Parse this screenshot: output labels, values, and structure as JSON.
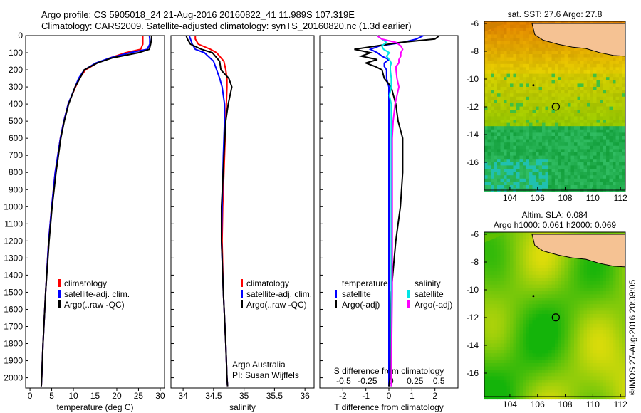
{
  "title": {
    "line1": "Argo profile: CS 5905018_24 21-Aug-2016 20160822_41 11.989S 107.319E",
    "line2": "Climatology: CARS2009. Satellite-adjusted climatology: synTS_20160820.nc (1.3d earlier)"
  },
  "credit": "©IMOS 27-Aug-2016 20:39:05",
  "colors": {
    "clim": "#ff0000",
    "sat": "#0000ff",
    "argo": "#000000",
    "sat_s": "#00e5e5",
    "argo_s": "#ff00ff"
  },
  "chart_data": [
    {
      "type": "line",
      "id": "temperature",
      "xlabel": "temperature (deg C)",
      "ylabel": "depth",
      "xlim": [
        -1,
        31
      ],
      "ylim": [
        2060,
        0
      ],
      "xticks": [
        0,
        5,
        10,
        15,
        20,
        25,
        30
      ],
      "yticks": [
        0,
        100,
        200,
        300,
        400,
        500,
        600,
        700,
        800,
        900,
        1000,
        1100,
        1200,
        1300,
        1400,
        1500,
        1600,
        1700,
        1800,
        1900,
        2000
      ],
      "legend": [
        "climatology",
        "satellite-adj. clim.",
        "Argo(..raw -QC)"
      ],
      "depth": [
        0,
        20,
        50,
        80,
        100,
        130,
        160,
        200,
        250,
        300,
        400,
        500,
        600,
        800,
        1000,
        1200,
        1500,
        1800,
        2000,
        2050
      ],
      "series": [
        {
          "name": "climatology",
          "color": "clim",
          "values": [
            26,
            26,
            26,
            25.5,
            22,
            18.5,
            15.5,
            12.8,
            11.4,
            10.5,
            8.8,
            7.8,
            7.0,
            5.8,
            5.0,
            4.3,
            3.6,
            3.0,
            2.7,
            2.6
          ]
        },
        {
          "name": "satellite-adj. clim.",
          "color": "sat",
          "values": [
            27.5,
            27.6,
            27.6,
            27,
            23,
            18.5,
            15.2,
            12.5,
            11.2,
            10.4,
            8.8,
            7.8,
            7.0,
            5.8,
            5.0,
            4.3,
            3.6,
            3.0,
            2.7,
            2.6
          ]
        },
        {
          "name": "Argo(..raw -QC)",
          "color": "argo",
          "values": [
            28,
            28,
            27.8,
            27.5,
            25,
            19,
            15.5,
            12.5,
            11.5,
            10.4,
            8.9,
            7.9,
            7.1,
            6.0,
            5.1,
            4.4,
            3.6,
            3.0,
            2.7,
            2.6
          ]
        }
      ]
    },
    {
      "type": "line",
      "id": "salinity",
      "xlabel": "salinity",
      "ylabel": "depth",
      "xlim": [
        33.8,
        36.15
      ],
      "ylim": [
        2060,
        0
      ],
      "xticks": [
        34,
        34.5,
        35,
        35.5,
        36
      ],
      "legend": [
        "climatology",
        "satellite-adj. clim.",
        "Argo(..raw -QC)"
      ],
      "annotation": [
        "Argo Australia",
        "PI: Susan Wijffels"
      ],
      "depth": [
        0,
        20,
        50,
        80,
        100,
        150,
        200,
        250,
        300,
        400,
        500,
        700,
        1000,
        1200,
        1500,
        1800,
        2000,
        2050
      ],
      "series": [
        {
          "name": "climatology",
          "color": "clim",
          "values": [
            34.2,
            34.2,
            34.25,
            34.45,
            34.55,
            34.67,
            34.7,
            34.72,
            34.72,
            34.71,
            34.7,
            34.68,
            34.65,
            34.64,
            34.66,
            34.7,
            34.72,
            34.73
          ]
        },
        {
          "name": "satellite-adj. clim.",
          "color": "sat",
          "values": [
            34.1,
            34.12,
            34.15,
            34.2,
            34.35,
            34.5,
            34.55,
            34.6,
            34.64,
            34.68,
            34.68,
            34.66,
            34.64,
            34.63,
            34.66,
            34.7,
            34.72,
            34.73
          ]
        },
        {
          "name": "Argo(..raw -QC)",
          "color": "argo",
          "values": [
            34.05,
            34.07,
            34.12,
            34.3,
            34.48,
            34.6,
            34.62,
            34.75,
            34.8,
            34.74,
            34.7,
            34.67,
            34.63,
            34.63,
            34.66,
            34.7,
            34.72,
            34.73
          ]
        }
      ]
    },
    {
      "type": "line",
      "id": "difference",
      "xlabel": "T difference from climatology",
      "x2label": "S difference from climatology",
      "xlim": [
        -3,
        3
      ],
      "x2lim": [
        -0.75,
        0.7
      ],
      "ylim": [
        2060,
        0
      ],
      "xticks": [
        "-2",
        "-1",
        "0",
        "1",
        "2"
      ],
      "x2ticks": [
        "-0.5",
        "-0.25",
        "0",
        "0.25",
        "0.5"
      ],
      "legend": {
        "temperature": "temperature",
        "salinity": "salinity",
        "items": [
          "satellite",
          "Argo(-adj)",
          "satellite",
          "Argo(-adj)"
        ]
      },
      "depth": [
        0,
        20,
        40,
        60,
        80,
        100,
        120,
        140,
        160,
        180,
        200,
        250,
        300,
        350,
        400,
        500,
        600,
        800,
        1000,
        1200,
        1500,
        2000,
        2050
      ],
      "series": [
        {
          "name": "T satellite",
          "axis": "T",
          "color": "sat",
          "values": [
            1.5,
            1.2,
            0.6,
            -0.4,
            -0.8,
            -0.5,
            -0.3,
            0,
            -0.2,
            -0.2,
            -0.1,
            -0.1,
            0,
            0,
            0,
            0,
            0,
            0,
            0,
            0,
            0,
            0,
            0
          ]
        },
        {
          "name": "T Argo(-adj)",
          "axis": "T",
          "color": "argo",
          "values": [
            2.2,
            2.0,
            0.5,
            -0.5,
            -1.5,
            -0.8,
            -1.2,
            -0.5,
            -1.0,
            -0.6,
            -0.3,
            -0.2,
            0.1,
            0.2,
            0.3,
            0.4,
            0.6,
            0.6,
            0.5,
            0.3,
            0.1,
            0.05,
            0
          ]
        },
        {
          "name": "S satellite",
          "axis": "S",
          "color": "sat_s",
          "values": [
            -0.15,
            -0.1,
            -0.05,
            -0.1,
            -0.08,
            -0.02,
            -0.05,
            -0.02,
            0,
            -0.01,
            -0.01,
            0,
            0,
            -0.02,
            0,
            0,
            0,
            0,
            0,
            0,
            0,
            0,
            0
          ]
        },
        {
          "name": "S Argo(-adj)",
          "axis": "S",
          "color": "argo_s",
          "values": [
            -0.15,
            -0.1,
            0.05,
            0.1,
            0.12,
            0.1,
            0.1,
            0.08,
            0.08,
            0.05,
            0.05,
            0.06,
            0.08,
            0.06,
            0.04,
            0.02,
            0.01,
            0.01,
            0.01,
            0.01,
            0.01,
            0,
            0
          ]
        }
      ]
    }
  ],
  "maps": [
    {
      "id": "sst",
      "title": [
        "sat. SST: 27.6 Argo: 27.8"
      ],
      "xticks": [
        "104",
        "106",
        "108",
        "110",
        "112"
      ],
      "yticks": [
        "-6",
        "-8",
        "-10",
        "-12",
        "-14",
        "-16"
      ],
      "argo_lon": 107.319,
      "argo_lat": -11.989
    },
    {
      "id": "sla",
      "title": [
        "Altim. SLA: 0.084",
        "Argo h1000: 0.061 h2000: 0.069"
      ],
      "xticks": [
        "104",
        "106",
        "108",
        "110",
        "112"
      ],
      "yticks": [
        "-6",
        "-8",
        "-10",
        "-12",
        "-14",
        "-16"
      ],
      "argo_lon": 107.319,
      "argo_lat": -11.989
    }
  ]
}
